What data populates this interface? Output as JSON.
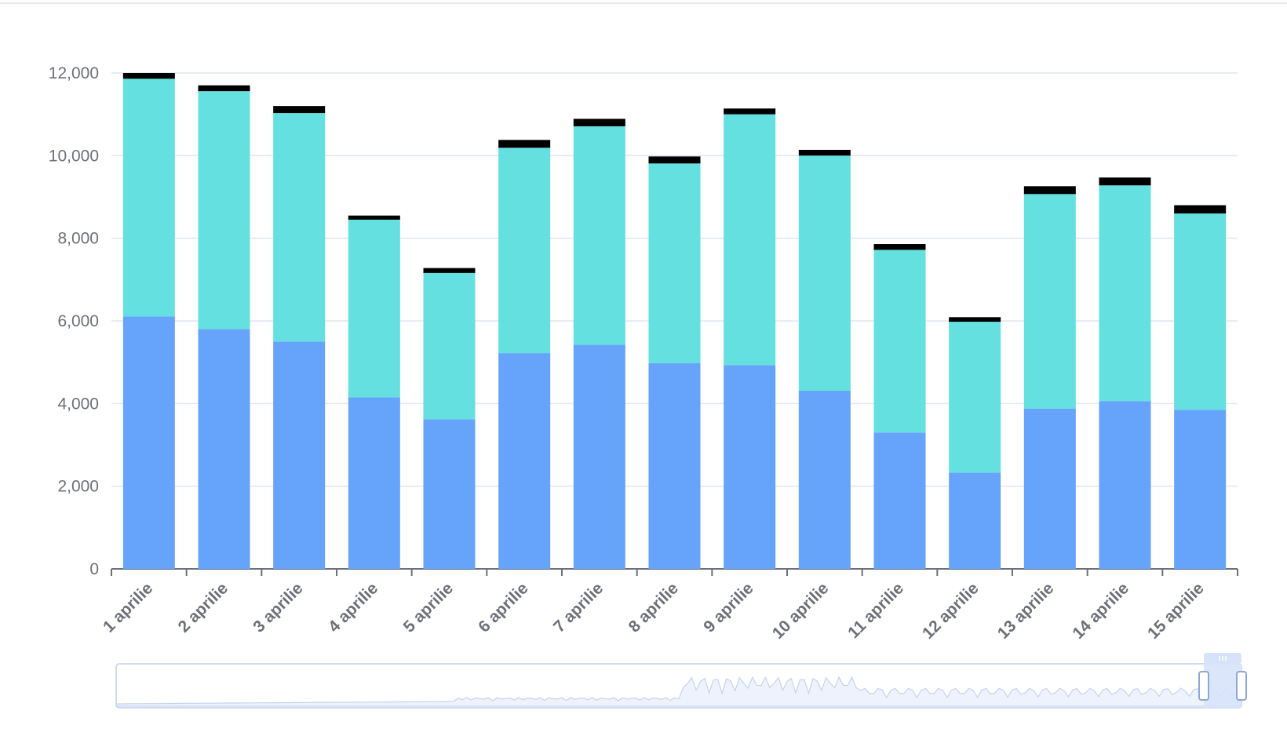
{
  "chart_data": {
    "type": "bar",
    "stacked": true,
    "categories": [
      "1 aprilie",
      "2 aprilie",
      "3 aprilie",
      "4 aprilie",
      "5 aprilie",
      "6 aprilie",
      "7 aprilie",
      "8 aprilie",
      "9 aprilie",
      "10 aprilie",
      "11 aprilie",
      "12 aprilie",
      "13 aprilie",
      "14 aprilie",
      "15 aprilie"
    ],
    "series": [
      {
        "color": "#66a3fb",
        "values": [
          6110,
          5800,
          5500,
          4150,
          3620,
          5220,
          5420,
          4980,
          4930,
          4310,
          3300,
          2330,
          3880,
          4060,
          3850
        ]
      },
      {
        "color": "#64e0e0",
        "values": [
          5750,
          5760,
          5530,
          4300,
          3540,
          4970,
          5290,
          4830,
          6070,
          5690,
          4420,
          3650,
          5190,
          5220,
          4750
        ]
      },
      {
        "color": "#000000",
        "values": [
          140,
          140,
          170,
          100,
          120,
          190,
          180,
          170,
          140,
          140,
          140,
          110,
          190,
          190,
          200
        ]
      }
    ],
    "ylim": [
      0,
      12000
    ],
    "yticks": [
      "0",
      "2,000",
      "4,000",
      "6,000",
      "8,000",
      "10,000",
      "12,000"
    ],
    "grid": true,
    "legend": "none",
    "data_zoom": {
      "present": true,
      "range": "end",
      "fill_color": "#d7e3fb"
    }
  }
}
